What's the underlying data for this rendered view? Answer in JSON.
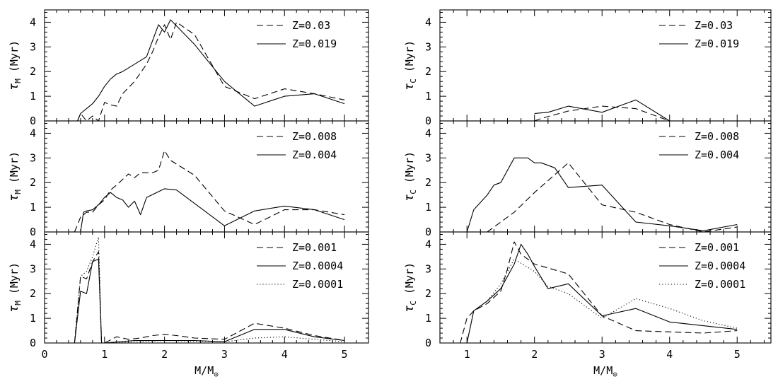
{
  "chart_data": [
    {
      "type": "line",
      "panel": "left-top",
      "ylabel": "τM (Myr)",
      "xlabel": "",
      "xlim": [
        0,
        5.4
      ],
      "ylim": [
        0,
        4.5
      ],
      "xticks": [
        0,
        1,
        2,
        3,
        4,
        5
      ],
      "yticks": [
        0,
        1,
        2,
        3,
        4
      ],
      "show_x_ticklabels": false,
      "series": [
        {
          "name": "Z=0.03",
          "style": "dashed",
          "x": [
            0.55,
            0.6,
            0.7,
            0.8,
            0.9,
            1.0,
            1.1,
            1.2,
            1.3,
            1.5,
            1.7,
            1.8,
            1.9,
            2.0,
            2.1,
            2.2,
            2.5,
            3.0,
            3.5,
            4.0,
            4.5,
            5.0
          ],
          "y": [
            0.0,
            0.3,
            0.0,
            0.2,
            0.0,
            0.75,
            0.65,
            0.6,
            1.1,
            1.6,
            2.3,
            2.8,
            3.4,
            3.9,
            3.3,
            4.0,
            3.5,
            1.4,
            0.9,
            1.3,
            1.1,
            0.85
          ]
        },
        {
          "name": "Z=0.019",
          "style": "solid",
          "x": [
            0.55,
            0.6,
            0.7,
            0.8,
            0.9,
            1.0,
            1.1,
            1.2,
            1.3,
            1.5,
            1.7,
            1.9,
            2.0,
            2.1,
            2.5,
            3.0,
            3.5,
            4.0,
            4.5,
            5.0
          ],
          "y": [
            0.0,
            0.3,
            0.5,
            0.7,
            1.0,
            1.4,
            1.7,
            1.9,
            2.0,
            2.3,
            2.6,
            3.9,
            3.6,
            4.1,
            3.1,
            1.6,
            0.6,
            1.0,
            1.1,
            0.7
          ]
        }
      ]
    },
    {
      "type": "line",
      "panel": "left-middle",
      "ylabel": "τM (Myr)",
      "xlabel": "",
      "xlim": [
        0,
        5.4
      ],
      "ylim": [
        0,
        4.5
      ],
      "xticks": [
        0,
        1,
        2,
        3,
        4,
        5
      ],
      "yticks": [
        0,
        1,
        2,
        3,
        4
      ],
      "show_x_ticklabels": false,
      "series": [
        {
          "name": "Z=0.008",
          "style": "dashed",
          "x": [
            0.5,
            0.6,
            0.7,
            0.8,
            0.9,
            1.0,
            1.1,
            1.2,
            1.4,
            1.5,
            1.6,
            1.8,
            1.9,
            2.0,
            2.1,
            2.5,
            3.0,
            3.5,
            4.0,
            4.5,
            5.0
          ],
          "y": [
            0.0,
            0.6,
            0.8,
            0.8,
            1.1,
            1.3,
            1.7,
            1.9,
            2.35,
            2.2,
            2.4,
            2.4,
            2.5,
            3.3,
            2.9,
            2.3,
            0.85,
            0.3,
            0.9,
            0.9,
            0.7
          ]
        },
        {
          "name": "Z=0.004",
          "style": "solid",
          "x": [
            0.6,
            0.65,
            0.7,
            0.8,
            0.9,
            1.0,
            1.1,
            1.2,
            1.3,
            1.4,
            1.5,
            1.6,
            1.7,
            2.0,
            2.2,
            3.0,
            3.5,
            4.0,
            4.5,
            5.0
          ],
          "y": [
            0.0,
            0.8,
            0.85,
            0.9,
            1.1,
            1.4,
            1.6,
            1.4,
            1.3,
            1.0,
            1.25,
            0.7,
            1.4,
            1.75,
            1.7,
            0.25,
            0.85,
            1.05,
            0.9,
            0.5
          ]
        }
      ]
    },
    {
      "type": "line",
      "panel": "left-bottom",
      "ylabel": "τM (Myr)",
      "xlabel": "M/M⊙",
      "xlim": [
        0,
        5.4
      ],
      "ylim": [
        0,
        4.5
      ],
      "xticks": [
        0,
        1,
        2,
        3,
        4,
        5
      ],
      "yticks": [
        0,
        1,
        2,
        3,
        4
      ],
      "show_x_ticklabels": true,
      "series": [
        {
          "name": "Z=0.001",
          "style": "dashed",
          "x": [
            0.5,
            0.6,
            0.7,
            0.8,
            0.85,
            0.9,
            0.95,
            1.0,
            1.2,
            1.4,
            1.6,
            1.8,
            2.0,
            2.2,
            2.5,
            3.0,
            3.5,
            4.0,
            4.5,
            5.0
          ],
          "y": [
            0.0,
            2.7,
            2.6,
            3.3,
            3.5,
            3.7,
            0.0,
            0.0,
            0.25,
            0.15,
            0.2,
            0.3,
            0.35,
            0.3,
            0.2,
            0.15,
            0.8,
            0.6,
            0.3,
            0.1
          ]
        },
        {
          "name": "Z=0.0004",
          "style": "solid",
          "x": [
            0.5,
            0.6,
            0.7,
            0.8,
            0.9,
            0.95,
            1.0,
            1.5,
            2.0,
            2.5,
            3.0,
            3.5,
            4.0,
            4.5,
            5.0
          ],
          "y": [
            0.0,
            2.1,
            2.0,
            3.3,
            3.4,
            0.0,
            0.0,
            0.1,
            0.1,
            0.1,
            0.05,
            0.55,
            0.55,
            0.25,
            0.1
          ]
        },
        {
          "name": "Z=0.0001",
          "style": "dotted",
          "x": [
            0.5,
            0.6,
            0.7,
            0.8,
            0.9,
            0.95,
            1.0,
            1.5,
            2.0,
            3.0,
            3.5,
            4.0,
            4.5,
            5.0
          ],
          "y": [
            0.0,
            2.7,
            2.9,
            3.5,
            4.3,
            0.0,
            0.0,
            0.05,
            0.1,
            0.05,
            0.2,
            0.25,
            0.15,
            0.05
          ]
        }
      ]
    },
    {
      "type": "line",
      "panel": "right-top",
      "ylabel": "τC (Myr)",
      "xlabel": "",
      "xlim": [
        0.6,
        5.5
      ],
      "ylim": [
        0,
        4.5
      ],
      "xticks": [
        1,
        2,
        3,
        4,
        5
      ],
      "yticks": [
        0,
        1,
        2,
        3,
        4
      ],
      "show_x_ticklabels": false,
      "series": [
        {
          "name": "Z=0.03",
          "style": "dashed",
          "x": [
            2.0,
            2.1,
            2.5,
            3.0,
            3.5,
            3.8,
            4.0
          ],
          "y": [
            0.0,
            0.1,
            0.4,
            0.6,
            0.5,
            0.2,
            0.0
          ]
        },
        {
          "name": "Z=0.019",
          "style": "solid",
          "x": [
            2.0,
            2.2,
            2.5,
            3.0,
            3.5,
            4.0
          ],
          "y": [
            0.3,
            0.35,
            0.6,
            0.35,
            0.85,
            0.0
          ]
        }
      ]
    },
    {
      "type": "line",
      "panel": "right-middle",
      "ylabel": "τC (Myr)",
      "xlabel": "",
      "xlim": [
        0.6,
        5.5
      ],
      "ylim": [
        0,
        4.5
      ],
      "xticks": [
        1,
        2,
        3,
        4,
        5
      ],
      "yticks": [
        0,
        1,
        2,
        3,
        4
      ],
      "show_x_ticklabels": false,
      "series": [
        {
          "name": "Z=0.008",
          "style": "dashed",
          "x": [
            1.3,
            1.5,
            1.7,
            2.0,
            2.5,
            3.0,
            3.5,
            4.0,
            4.5,
            5.0
          ],
          "y": [
            0.0,
            0.4,
            0.8,
            1.6,
            2.8,
            1.1,
            0.8,
            0.3,
            0.0,
            0.2
          ]
        },
        {
          "name": "Z=0.004",
          "style": "solid",
          "x": [
            1.0,
            1.1,
            1.3,
            1.4,
            1.5,
            1.7,
            1.9,
            2.0,
            2.1,
            2.3,
            2.5,
            3.0,
            3.5,
            4.0,
            4.5,
            5.0
          ],
          "y": [
            0.0,
            0.9,
            1.5,
            1.9,
            2.0,
            3.0,
            3.0,
            2.8,
            2.8,
            2.6,
            1.8,
            1.9,
            0.4,
            0.25,
            0.05,
            0.3
          ]
        }
      ]
    },
    {
      "type": "line",
      "panel": "right-bottom",
      "ylabel": "τC (Myr)",
      "xlabel": "M/M⊙",
      "xlim": [
        0.6,
        5.5
      ],
      "ylim": [
        0,
        4.5
      ],
      "xticks": [
        1,
        2,
        3,
        4,
        5
      ],
      "yticks": [
        0,
        1,
        2,
        3,
        4
      ],
      "show_x_ticklabels": true,
      "series": [
        {
          "name": "Z=0.001",
          "style": "dashed",
          "x": [
            0.6,
            0.9,
            1.0,
            1.1,
            1.3,
            1.5,
            1.6,
            1.7,
            1.8,
            2.0,
            2.5,
            3.0,
            3.5,
            4.0,
            4.5,
            5.0
          ],
          "y": [
            0.0,
            0.0,
            1.0,
            1.3,
            1.6,
            2.1,
            3.0,
            4.1,
            3.6,
            3.2,
            2.8,
            1.1,
            0.5,
            0.45,
            0.4,
            0.5
          ]
        },
        {
          "name": "Z=0.0004",
          "style": "solid",
          "x": [
            1.0,
            1.1,
            1.3,
            1.5,
            1.6,
            1.7,
            1.8,
            1.9,
            2.0,
            2.2,
            2.5,
            3.0,
            3.5,
            4.0,
            4.5,
            5.0
          ],
          "y": [
            0.0,
            1.3,
            1.7,
            2.2,
            2.7,
            3.2,
            4.0,
            3.6,
            3.1,
            2.2,
            2.4,
            1.1,
            1.4,
            0.85,
            0.7,
            0.55
          ]
        },
        {
          "name": "Z=0.0001",
          "style": "dotted",
          "x": [
            1.0,
            1.1,
            1.3,
            1.5,
            1.7,
            2.0,
            2.2,
            2.5,
            3.0,
            3.5,
            4.0,
            4.5,
            5.0
          ],
          "y": [
            0.0,
            1.3,
            1.7,
            2.4,
            3.4,
            2.9,
            2.3,
            2.0,
            1.0,
            1.8,
            1.4,
            0.9,
            0.6
          ]
        }
      ]
    }
  ]
}
